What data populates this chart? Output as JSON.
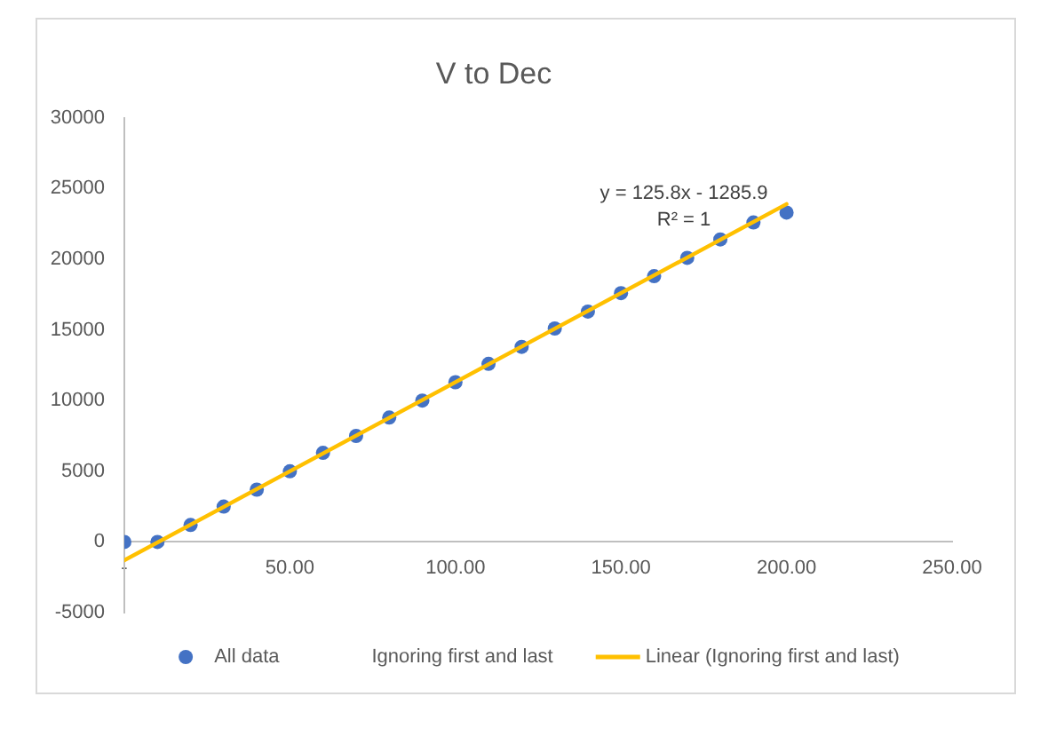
{
  "chart_data": {
    "type": "scatter",
    "title": "V to Dec",
    "x": [
      0,
      10,
      20,
      30,
      40,
      50,
      60,
      70,
      80,
      90,
      100,
      110,
      120,
      130,
      140,
      150,
      160,
      170,
      180,
      190,
      200
    ],
    "series": [
      {
        "name": "All data",
        "color": "#4472c4",
        "marker": "circle",
        "values": [
          0,
          0,
          1200,
          2500,
          3700,
          5000,
          6300,
          7500,
          8800,
          10000,
          11300,
          12600,
          13800,
          15100,
          16300,
          17600,
          18800,
          20100,
          21400,
          22600,
          23300
        ]
      },
      {
        "name": "Ignoring first and last",
        "marker": "none",
        "values": [
          null,
          null,
          null,
          null,
          null,
          null,
          null,
          null,
          null,
          null,
          null,
          null,
          null,
          null,
          null,
          null,
          null,
          null,
          null,
          null,
          null
        ]
      },
      {
        "name": "Linear (Ignoring first and last)",
        "type": "line",
        "color": "#ffc000",
        "marker": "none",
        "x": [
          0,
          200
        ],
        "values": [
          -1300,
          23900
        ]
      }
    ],
    "xlim": [
      0,
      250
    ],
    "xticks": [
      {
        "value": 0,
        "label": "-"
      },
      {
        "value": 50,
        "label": "50.00"
      },
      {
        "value": 100,
        "label": "100.00"
      },
      {
        "value": 150,
        "label": "150.00"
      },
      {
        "value": 200,
        "label": "200.00"
      },
      {
        "value": 250,
        "label": "250.00"
      }
    ],
    "ylim": [
      -5000,
      30000
    ],
    "yticks": [
      -5000,
      0,
      5000,
      10000,
      15000,
      20000,
      25000,
      30000
    ],
    "legend": "bottom",
    "annotations": [
      "y = 125.8x - 1285.9",
      "R² = 1"
    ]
  }
}
